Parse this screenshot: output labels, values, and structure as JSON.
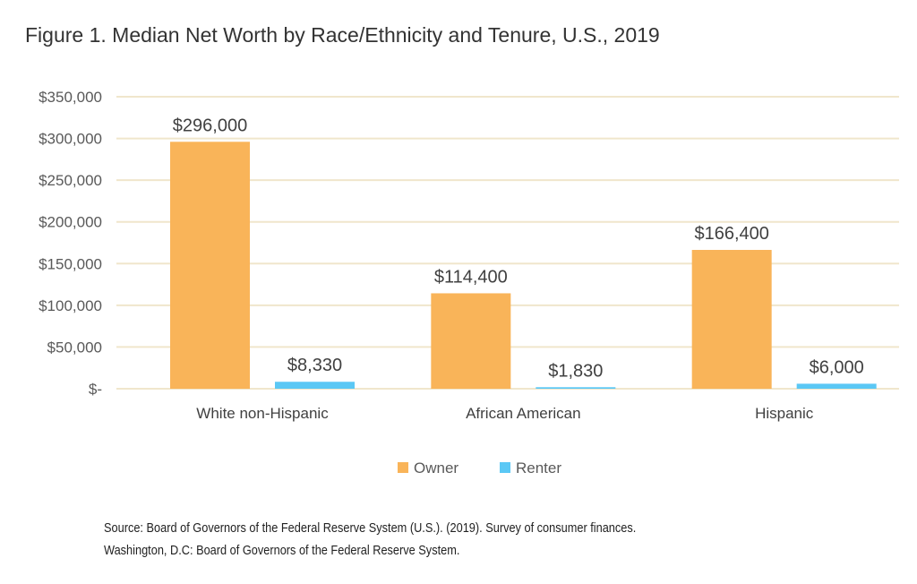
{
  "title": "Figure 1.  Median Net Worth by Race/Ethnicity and Tenure, U.S., 2019",
  "source": {
    "line1": "Source: Board of Governors of the Federal Reserve System (U.S.). (2019). Survey of consumer finances.",
    "line2": "Washington, D.C: Board of Governors of the Federal Reserve System."
  },
  "colors": {
    "owner": "#F9B459",
    "renter": "#5BC8F5",
    "grid": "#F0E6CC"
  },
  "chart_data": {
    "type": "bar",
    "title": "Figure 1.  Median Net Worth by Race/Ethnicity and Tenure, U.S., 2019",
    "categories": [
      "White non-Hispanic",
      "African American",
      "Hispanic"
    ],
    "series": [
      {
        "name": "Owner",
        "values": [
          296000,
          114400,
          166400
        ],
        "labels": [
          "$296,000",
          "$114,400",
          "$166,400"
        ]
      },
      {
        "name": "Renter",
        "values": [
          8330,
          1830,
          6000
        ],
        "labels": [
          "$8,330",
          "$1,830",
          "$6,000"
        ]
      }
    ],
    "yticks": [
      0,
      50000,
      100000,
      150000,
      200000,
      250000,
      300000,
      350000
    ],
    "ytick_labels": [
      "$-",
      "$50,000",
      "$100,000",
      "$150,000",
      "$200,000",
      "$250,000",
      "$300,000",
      "$350,000"
    ],
    "ylim": [
      0,
      350000
    ],
    "grid": true,
    "legend_position": "bottom"
  }
}
